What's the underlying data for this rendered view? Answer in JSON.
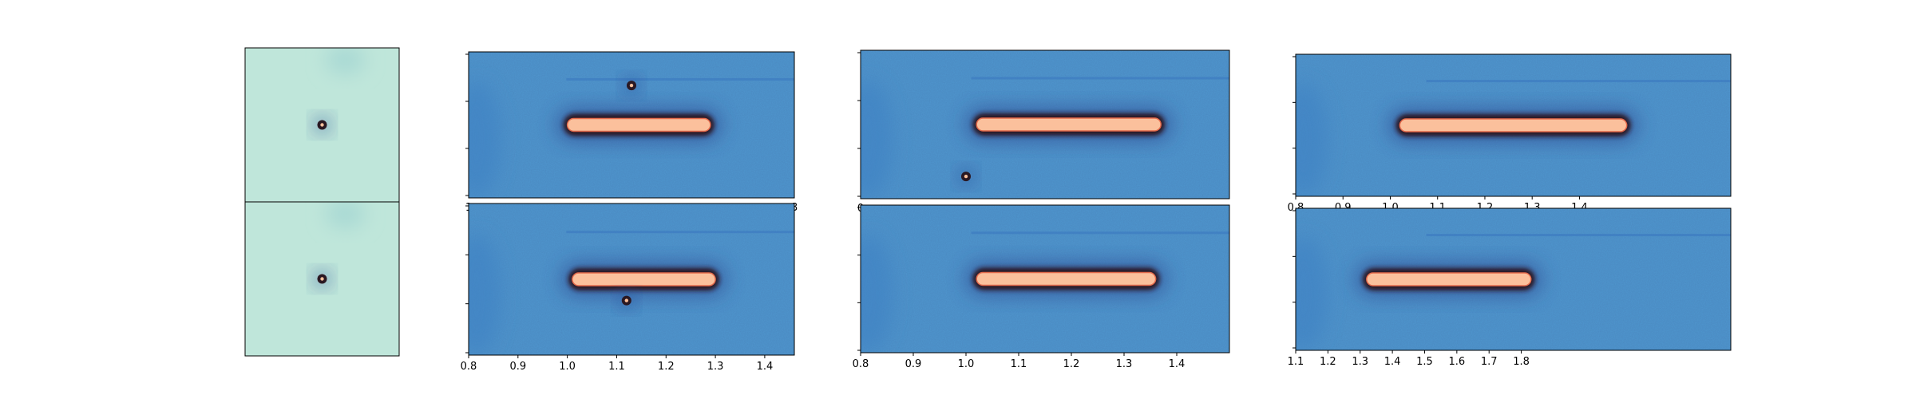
{
  "chart_data": [
    {
      "type": "heatmap",
      "panel": "row1-col1",
      "xticks": [],
      "yticks": [],
      "sources": [
        {
          "x": 0.5,
          "y": 0.5,
          "size": "point"
        }
      ]
    },
    {
      "type": "heatmap",
      "panel": "row2-col1",
      "xticks": [],
      "yticks": [],
      "sources": [
        {
          "x": 0.5,
          "y": 0.5,
          "size": "point"
        }
      ]
    },
    {
      "type": "heatmap",
      "panel": "row1-col2",
      "xlim": [
        0.8,
        1.46
      ],
      "xticks": [],
      "xtick_labels_visible": [
        "1",
        "8"
      ],
      "yticks": [
        0,
        1,
        2,
        3
      ],
      "sources": [
        {
          "shape": "elongated",
          "x_start": 1.0,
          "x_end": 1.29,
          "y": 0.5
        },
        {
          "shape": "point",
          "x": 1.13,
          "y": 0.23
        }
      ]
    },
    {
      "type": "heatmap",
      "panel": "row2-col2",
      "xlim": [
        0.8,
        1.46
      ],
      "xticks": [
        "0.8",
        "0.9",
        "1.0",
        "1.1",
        "1.2",
        "1.3",
        "1.4"
      ],
      "yticks": [
        0,
        1,
        2,
        3
      ],
      "sources": [
        {
          "shape": "elongated",
          "x_start": 1.01,
          "x_end": 1.3,
          "y": 0.5
        },
        {
          "shape": "point",
          "x": 1.12,
          "y": 0.64
        }
      ]
    },
    {
      "type": "heatmap",
      "panel": "row1-col3",
      "xlim": [
        0.8,
        1.5
      ],
      "xticks": [],
      "xtick_labels_visible": [
        "0"
      ],
      "yticks": [
        0,
        1,
        2,
        3
      ],
      "sources": [
        {
          "shape": "elongated",
          "x_start": 1.02,
          "x_end": 1.37,
          "y": 0.5
        },
        {
          "shape": "point",
          "x": 1.0,
          "y": 0.85
        }
      ]
    },
    {
      "type": "heatmap",
      "panel": "row2-col3",
      "xlim": [
        0.8,
        1.5
      ],
      "xticks": [
        "0.8",
        "0.9",
        "1.0",
        "1.1",
        "1.2",
        "1.3",
        "1.4"
      ],
      "yticks": [
        0,
        1,
        2,
        3
      ],
      "sources": [
        {
          "shape": "elongated",
          "x_start": 1.02,
          "x_end": 1.36,
          "y": 0.5
        }
      ]
    },
    {
      "type": "heatmap",
      "panel": "row1-col4",
      "xlim": [
        0.8,
        1.72
      ],
      "xticks": [
        "0.8",
        "0.9",
        "1.0",
        "1.1",
        "1.2",
        "1.3",
        "1.4"
      ],
      "yticks": [
        0,
        1,
        2,
        3
      ],
      "sources": [
        {
          "shape": "elongated",
          "x_start": 1.02,
          "x_end": 1.5,
          "y": 0.5
        }
      ]
    },
    {
      "type": "heatmap",
      "panel": "row2-col4",
      "xlim": [
        1.1,
        2.45
      ],
      "xticks": [
        "1.1",
        "1.2",
        "1.3",
        "1.4",
        "1.5",
        "1.6",
        "1.7",
        "1.8"
      ],
      "yticks": [
        0,
        1,
        2,
        3
      ],
      "sources": [
        {
          "shape": "elongated",
          "x_start": 1.32,
          "x_end": 1.83,
          "y": 0.5
        }
      ]
    }
  ],
  "colors": {
    "background_small": "#bfe6da",
    "background_wide": "#4f97cf",
    "streak_core": "#fbc09c",
    "streak_halo": "#2a1822",
    "frame": "#000000"
  }
}
